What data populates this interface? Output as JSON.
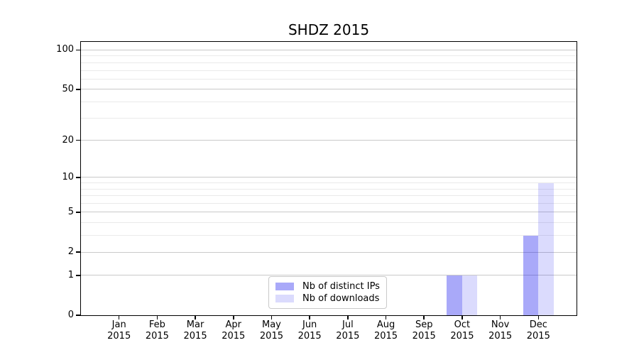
{
  "chart_data": {
    "type": "bar",
    "title": "SHDZ 2015",
    "categories": [
      "Jan",
      "Feb",
      "Mar",
      "Apr",
      "May",
      "Jun",
      "Jul",
      "Aug",
      "Sep",
      "Oct",
      "Nov",
      "Dec"
    ],
    "category_year": "2015",
    "series": [
      {
        "name": "Nb of distinct IPs",
        "color": "rgba(30,30,240,0.38)",
        "values": [
          0,
          0,
          0,
          0,
          0,
          0,
          0,
          0,
          0,
          1,
          0,
          3
        ]
      },
      {
        "name": "Nb of downloads",
        "color": "rgba(30,30,240,0.16)",
        "values": [
          0,
          0,
          0,
          0,
          0,
          0,
          0,
          0,
          0,
          1,
          0,
          9
        ]
      }
    ],
    "y_axis": {
      "scale": "log10(1+x)",
      "tick_values": [
        0,
        1,
        2,
        5,
        10,
        20,
        50,
        100
      ],
      "tick_labels": [
        "0",
        "1",
        "2",
        "5",
        "10",
        "20",
        "50",
        "100"
      ],
      "gridline_values": [
        1,
        2,
        3,
        4,
        5,
        6,
        7,
        8,
        9,
        10,
        20,
        30,
        40,
        50,
        60,
        70,
        80,
        90,
        100
      ],
      "max_log1p": 2.066,
      "ylim": [
        0,
        115
      ]
    },
    "legend": {
      "position": "lower center",
      "entries": [
        "Nb of distinct IPs",
        "Nb of downloads"
      ]
    },
    "grid": true,
    "bar_width_fraction": 0.4
  },
  "colors": {
    "background": "#ffffff",
    "axis": "#000000",
    "grid_major": "#c9c9c9",
    "grid_minor": "#eaeaea",
    "legend_border": "#c9c9c9",
    "bar_distinct_ips": "#a9a9fa",
    "bar_downloads": "#dbdbfa"
  }
}
